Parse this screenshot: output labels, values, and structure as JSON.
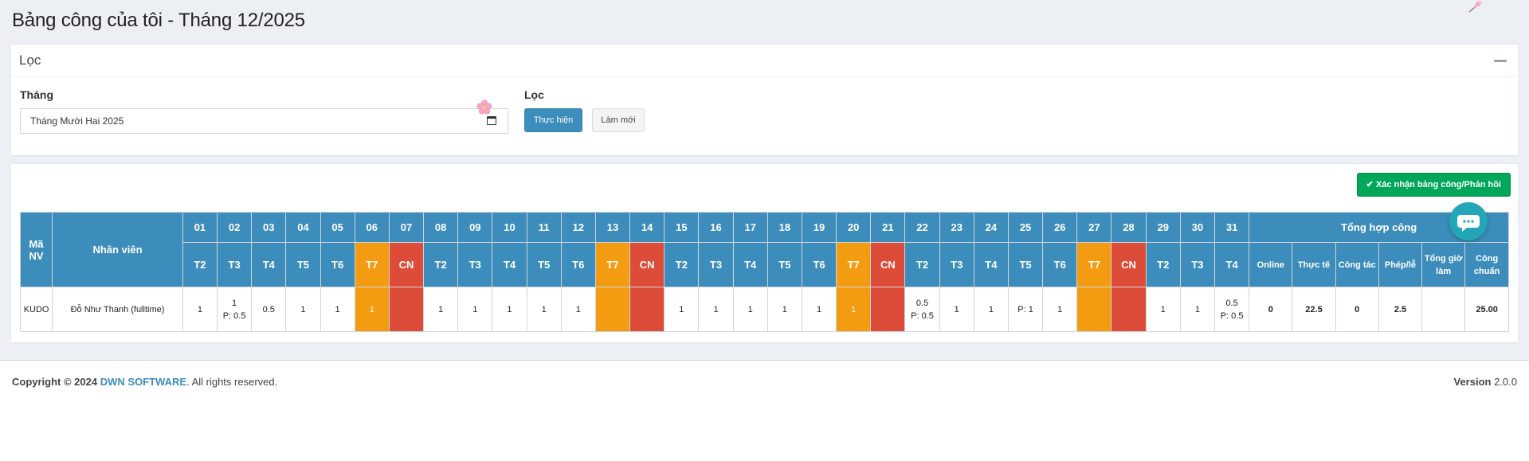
{
  "page": {
    "title": "Bảng công của tôi - Tháng 12/2025"
  },
  "filter": {
    "title": "Lọc",
    "month_label": "Tháng",
    "month_value": "Tháng Mười Hai 2025",
    "loc_label": "Lọc",
    "run_label": "Thực hiện",
    "reset_label": "Làm mới"
  },
  "table": {
    "confirm_label": "Xác nhận bảng công/Phản hồi",
    "col_code": "Mã NV",
    "col_name": "Nhân viên",
    "summary_header": "Tổng hợp công",
    "days": [
      {
        "d": "01",
        "w": "T2"
      },
      {
        "d": "02",
        "w": "T3"
      },
      {
        "d": "03",
        "w": "T4"
      },
      {
        "d": "04",
        "w": "T5"
      },
      {
        "d": "05",
        "w": "T6"
      },
      {
        "d": "06",
        "w": "T7"
      },
      {
        "d": "07",
        "w": "CN"
      },
      {
        "d": "08",
        "w": "T2"
      },
      {
        "d": "09",
        "w": "T3"
      },
      {
        "d": "10",
        "w": "T4"
      },
      {
        "d": "11",
        "w": "T5"
      },
      {
        "d": "12",
        "w": "T6"
      },
      {
        "d": "13",
        "w": "T7"
      },
      {
        "d": "14",
        "w": "CN"
      },
      {
        "d": "15",
        "w": "T2"
      },
      {
        "d": "16",
        "w": "T3"
      },
      {
        "d": "17",
        "w": "T4"
      },
      {
        "d": "18",
        "w": "T5"
      },
      {
        "d": "19",
        "w": "T6"
      },
      {
        "d": "20",
        "w": "T7"
      },
      {
        "d": "21",
        "w": "CN"
      },
      {
        "d": "22",
        "w": "T2"
      },
      {
        "d": "23",
        "w": "T3"
      },
      {
        "d": "24",
        "w": "T4"
      },
      {
        "d": "25",
        "w": "T5"
      },
      {
        "d": "26",
        "w": "T6"
      },
      {
        "d": "27",
        "w": "T7"
      },
      {
        "d": "28",
        "w": "CN"
      },
      {
        "d": "29",
        "w": "T2"
      },
      {
        "d": "30",
        "w": "T3"
      },
      {
        "d": "31",
        "w": "T4"
      }
    ],
    "summary_cols": [
      "Online",
      "Thực tế",
      "Công tác",
      "Phép/lễ",
      "Tổng giờ làm",
      "Công chuẩn"
    ],
    "rows": [
      {
        "code": "KUDO",
        "name": "Đỗ Như Thanh (fulltime)",
        "cells": [
          "1",
          "1\nP: 0.5",
          "0.5",
          "1",
          "1",
          "1",
          "",
          "1",
          "1",
          "1",
          "1",
          "1",
          "",
          "",
          "1",
          "1",
          "1",
          "1",
          "1",
          "1",
          "",
          "0.5\nP: 0.5",
          "1",
          "1",
          "P: 1",
          "1",
          "",
          "",
          "1",
          "1",
          "0.5\nP: 0.5"
        ],
        "summary": [
          "0",
          "22.5",
          "0",
          "2.5",
          "",
          "25.00"
        ]
      }
    ]
  },
  "footer": {
    "copyright_prefix": "Copyright © 2024",
    "company": "DWN SOFTWARE",
    "rights": ". All rights reserved.",
    "version_label": "Version",
    "version_value": "2.0.0"
  },
  "colors": {
    "primary": "#3c8dbc",
    "saturday": "#f39c12",
    "sunday": "#dd4b39",
    "success": "#00a65a"
  }
}
